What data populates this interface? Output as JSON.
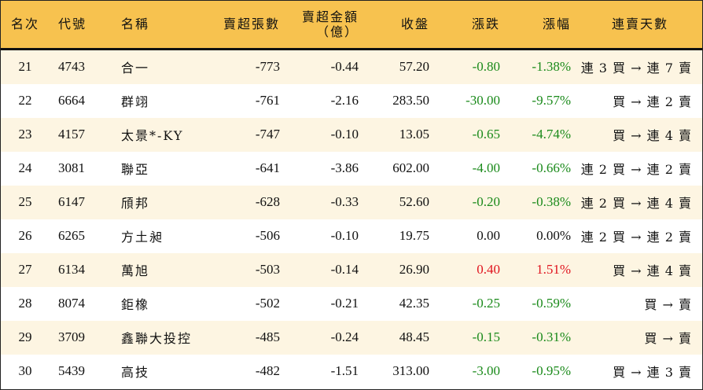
{
  "headers": {
    "rank": "名次",
    "code": "代號",
    "name": "名稱",
    "sell_lots": "賣超張數",
    "sell_amount_1": "賣超金額",
    "sell_amount_2": "（億）",
    "close": "收盤",
    "change": "漲跌",
    "pct": "漲幅",
    "consecutive": "連賣天數"
  },
  "colors": {
    "header_bg": "#f7c24f",
    "row_alt_bg": "#fdf5e2",
    "down": "#1a8a1a",
    "up": "#e0141e"
  },
  "rows": [
    {
      "rank": "21",
      "code": "4743",
      "name": "合一",
      "sell_lots": "-773",
      "sell_amount": "-0.44",
      "close": "57.20",
      "change": "-0.80",
      "pct": "-1.38%",
      "dir": "down",
      "consecutive": "連 3 買 → 連 7 賣"
    },
    {
      "rank": "22",
      "code": "6664",
      "name": "群翊",
      "sell_lots": "-761",
      "sell_amount": "-2.16",
      "close": "283.50",
      "change": "-30.00",
      "pct": "-9.57%",
      "dir": "down",
      "consecutive": "買 → 連 2 賣"
    },
    {
      "rank": "23",
      "code": "4157",
      "name": "太景*-KY",
      "sell_lots": "-747",
      "sell_amount": "-0.10",
      "close": "13.05",
      "change": "-0.65",
      "pct": "-4.74%",
      "dir": "down",
      "consecutive": "買 → 連 4 賣"
    },
    {
      "rank": "24",
      "code": "3081",
      "name": "聯亞",
      "sell_lots": "-641",
      "sell_amount": "-3.86",
      "close": "602.00",
      "change": "-4.00",
      "pct": "-0.66%",
      "dir": "down",
      "consecutive": "連 2 買 → 連 2 賣"
    },
    {
      "rank": "25",
      "code": "6147",
      "name": "頎邦",
      "sell_lots": "-628",
      "sell_amount": "-0.33",
      "close": "52.60",
      "change": "-0.20",
      "pct": "-0.38%",
      "dir": "down",
      "consecutive": "連 2 買 → 連 4 賣"
    },
    {
      "rank": "26",
      "code": "6265",
      "name": "方土昶",
      "sell_lots": "-506",
      "sell_amount": "-0.10",
      "close": "19.75",
      "change": "0.00",
      "pct": "0.00%",
      "dir": "flat",
      "consecutive": "連 2 買 → 連 2 賣"
    },
    {
      "rank": "27",
      "code": "6134",
      "name": "萬旭",
      "sell_lots": "-503",
      "sell_amount": "-0.14",
      "close": "26.90",
      "change": "0.40",
      "pct": "1.51%",
      "dir": "up",
      "consecutive": "買 → 連 4 賣"
    },
    {
      "rank": "28",
      "code": "8074",
      "name": "鉅橡",
      "sell_lots": "-502",
      "sell_amount": "-0.21",
      "close": "42.35",
      "change": "-0.25",
      "pct": "-0.59%",
      "dir": "down",
      "consecutive": "買 → 賣"
    },
    {
      "rank": "29",
      "code": "3709",
      "name": "鑫聯大投控",
      "sell_lots": "-485",
      "sell_amount": "-0.24",
      "close": "48.45",
      "change": "-0.15",
      "pct": "-0.31%",
      "dir": "down",
      "consecutive": "買 → 賣"
    },
    {
      "rank": "30",
      "code": "5439",
      "name": "高技",
      "sell_lots": "-482",
      "sell_amount": "-1.51",
      "close": "313.00",
      "change": "-3.00",
      "pct": "-0.95%",
      "dir": "down",
      "consecutive": "買 → 連 3 賣"
    }
  ]
}
